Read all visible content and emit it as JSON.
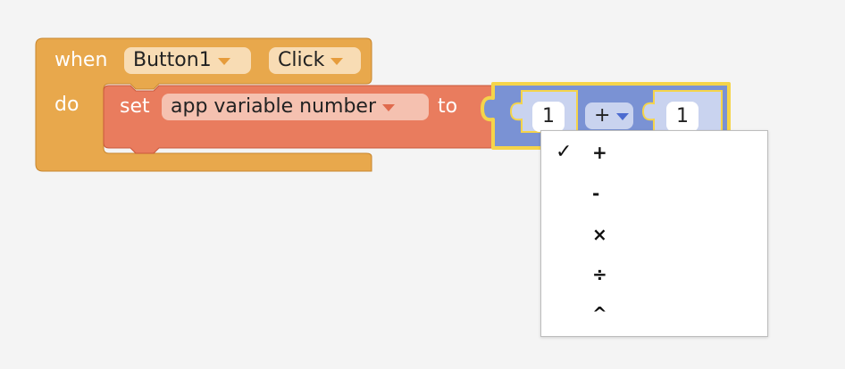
{
  "event_block": {
    "when_label": "when",
    "component_dropdown": "Button1",
    "event_dropdown": "Click",
    "do_label": "do",
    "color": "#e8a84c"
  },
  "set_block": {
    "set_label": "set",
    "variable_dropdown": "app variable number",
    "to_label": "to",
    "color": "#e97c5e"
  },
  "math_block": {
    "left_value": "1",
    "operator": "+",
    "right_value": "1",
    "color": "#7a92d4",
    "highlight_color": "#f5d44a"
  },
  "operator_menu": {
    "check_mark": "✓",
    "items": [
      "+",
      "-",
      "×",
      "÷",
      "^"
    ],
    "selected_index": 0
  }
}
